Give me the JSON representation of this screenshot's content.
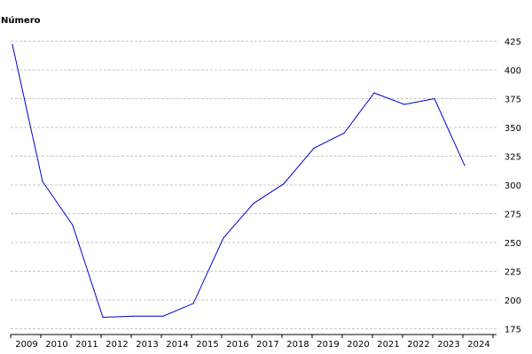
{
  "chart_data": {
    "type": "line",
    "title": "",
    "xlabel": "",
    "ylabel": "Número",
    "x": [
      "2009",
      "2010",
      "2011",
      "2012",
      "2013",
      "2014",
      "2015",
      "2016",
      "2017",
      "2018",
      "2019",
      "2020",
      "2021",
      "2022",
      "2023",
      "2024"
    ],
    "series": [
      {
        "values": [
          422,
          303,
          265,
          185,
          186,
          186,
          197,
          254,
          284,
          301,
          332,
          345,
          380,
          370,
          375,
          317
        ],
        "color": "#0000cc"
      }
    ],
    "ylim": [
      170,
      430
    ],
    "yticks": [
      175,
      200,
      225,
      250,
      275,
      300,
      325,
      350,
      375,
      400,
      425
    ],
    "grid": true,
    "grid_style": "dashed",
    "legend": "none"
  }
}
